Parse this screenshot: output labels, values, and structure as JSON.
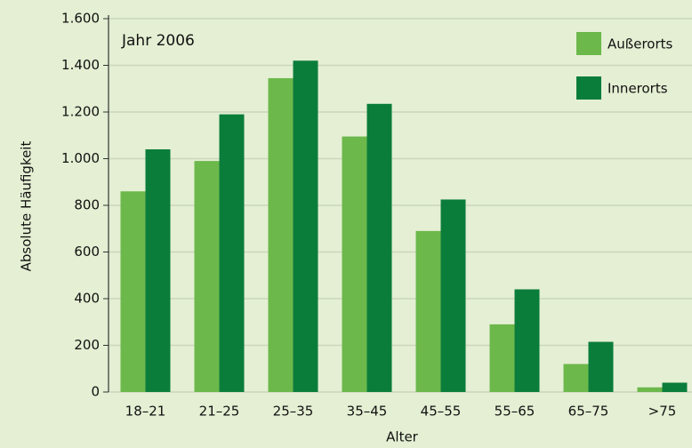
{
  "chart_data": {
    "type": "bar",
    "annotation": "Jahr 2006",
    "xlabel": "Alter",
    "ylabel": "Absolute Häufigkeit",
    "categories": [
      "18–21",
      "21–25",
      "25–35",
      "35–45",
      "45–55",
      "55–65",
      "65–75",
      ">75"
    ],
    "series": [
      {
        "name": "Außerorts",
        "color": "#6cb84b",
        "values": [
          860,
          990,
          1345,
          1095,
          690,
          290,
          120,
          20
        ]
      },
      {
        "name": "Innerorts",
        "color": "#0b7d3b",
        "values": [
          1040,
          1190,
          1420,
          1235,
          825,
          440,
          215,
          40
        ]
      }
    ],
    "ylim": [
      0,
      1600
    ],
    "yticks": [
      0,
      200,
      400,
      600,
      800,
      {
        "value": 1000,
        "label": "1.000"
      },
      {
        "value": 1200,
        "label": "1.200"
      },
      {
        "value": 1400,
        "label": "1.400"
      },
      {
        "value": 1600,
        "label": "1.600"
      }
    ],
    "grid": true,
    "legend": "top-right"
  }
}
